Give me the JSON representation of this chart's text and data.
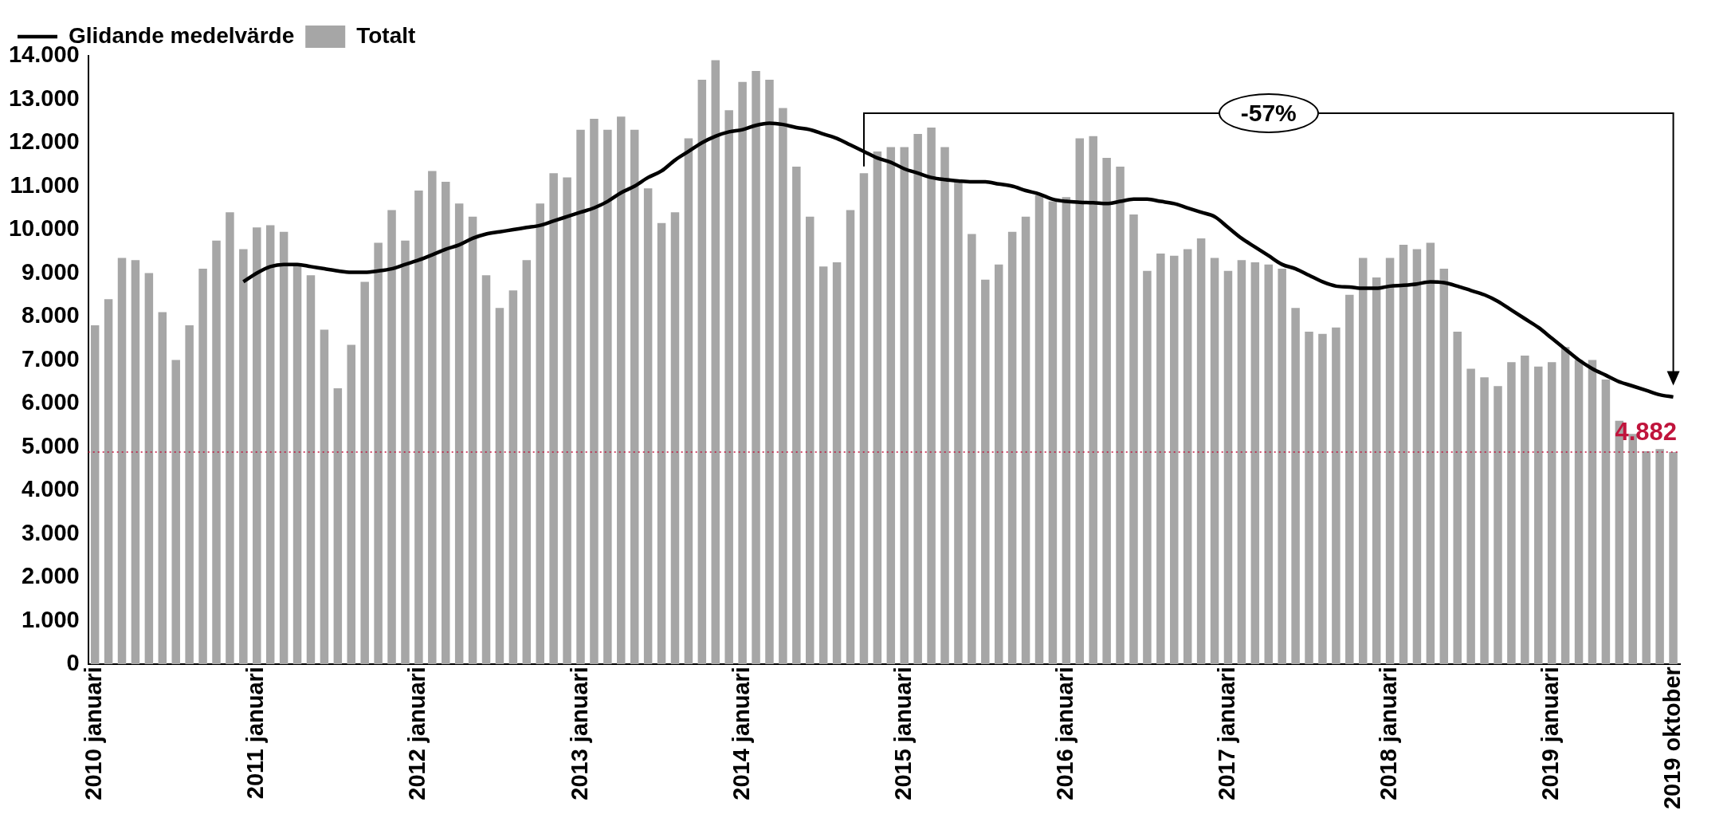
{
  "chart_data": {
    "type": "bar",
    "categories": [
      "2010 januari",
      null,
      null,
      null,
      null,
      null,
      null,
      null,
      null,
      null,
      null,
      null,
      "2011 januari",
      null,
      null,
      null,
      null,
      null,
      null,
      null,
      null,
      null,
      null,
      null,
      "2012 januari",
      null,
      null,
      null,
      null,
      null,
      null,
      null,
      null,
      null,
      null,
      null,
      "2013 januari",
      null,
      null,
      null,
      null,
      null,
      null,
      null,
      null,
      null,
      null,
      null,
      "2014 januari",
      null,
      null,
      null,
      null,
      null,
      null,
      null,
      null,
      null,
      null,
      null,
      "2015 januari",
      null,
      null,
      null,
      null,
      null,
      null,
      null,
      null,
      null,
      null,
      null,
      "2016 januari",
      null,
      null,
      null,
      null,
      null,
      null,
      null,
      null,
      null,
      null,
      null,
      "2017 januari",
      null,
      null,
      null,
      null,
      null,
      null,
      null,
      null,
      null,
      null,
      null,
      "2018 januari",
      null,
      null,
      null,
      null,
      null,
      null,
      null,
      null,
      null,
      null,
      null,
      "2019 januari",
      null,
      null,
      null,
      null,
      null,
      null,
      null,
      null,
      "2019 oktober"
    ],
    "series": [
      {
        "name": "Glidande medelvärde",
        "type": "line",
        "color": "#000000",
        "values": [
          null,
          null,
          null,
          null,
          null,
          null,
          null,
          null,
          null,
          null,
          null,
          8800,
          9000,
          9150,
          9200,
          9200,
          9150,
          9100,
          9050,
          9020,
          9020,
          9050,
          9100,
          9200,
          9300,
          9420,
          9550,
          9650,
          9800,
          9900,
          9950,
          10000,
          10050,
          10100,
          10200,
          10300,
          10400,
          10500,
          10650,
          10850,
          11000,
          11200,
          11350,
          11600,
          11800,
          12000,
          12150,
          12250,
          12300,
          12400,
          12450,
          12420,
          12350,
          12300,
          12200,
          12100,
          11950,
          11800,
          11650,
          11550,
          11400,
          11300,
          11200,
          11150,
          11120,
          11100,
          11100,
          11050,
          11000,
          10900,
          10820,
          10700,
          10650,
          10630,
          10620,
          10600,
          10650,
          10700,
          10700,
          10650,
          10600,
          10500,
          10400,
          10300,
          10050,
          9800,
          9600,
          9400,
          9200,
          9100,
          8950,
          8800,
          8700,
          8680,
          8650,
          8650,
          8700,
          8720,
          8750,
          8800,
          8780,
          8700,
          8600,
          8500,
          8350,
          8150,
          7950,
          7750,
          7500,
          7250,
          7000,
          6800,
          6650,
          6500,
          6400,
          6300,
          6200,
          6150
        ]
      },
      {
        "name": "Totalt",
        "color": "#a6a6a6",
        "values": [
          7800,
          8400,
          9350,
          9300,
          9000,
          8100,
          7000,
          7800,
          9100,
          9750,
          10400,
          9550,
          10050,
          10100,
          9950,
          9200,
          8950,
          7700,
          6350,
          7350,
          8800,
          9700,
          10450,
          9750,
          10900,
          11350,
          11100,
          10600,
          10300,
          8950,
          8200,
          8600,
          9300,
          10600,
          11300,
          11200,
          12300,
          12550,
          12300,
          12600,
          12300,
          10950,
          10150,
          10400,
          12100,
          13450,
          13900,
          12750,
          13400,
          13650,
          13450,
          12800,
          11450,
          10300,
          9150,
          9250,
          10450,
          11300,
          11800,
          11900,
          11900,
          12200,
          12350,
          11900,
          11100,
          9900,
          8850,
          9200,
          9950,
          10300,
          10800,
          10650,
          10750,
          12100,
          12150,
          11650,
          11450,
          10350,
          9050,
          9450,
          9400,
          9550,
          9800,
          9350,
          9050,
          9300,
          9250,
          9200,
          9100,
          8200,
          7650,
          7600,
          7750,
          8500,
          9350,
          8900,
          9350,
          9650,
          9550,
          9700,
          9100,
          7650,
          6800,
          6600,
          6400,
          6950,
          7100,
          6850,
          6950,
          7300,
          7000,
          7000,
          6550,
          5600,
          5300,
          4900,
          4950,
          4882
        ]
      }
    ],
    "ylim": [
      0,
      14000
    ],
    "yticks": [
      {
        "value": 0,
        "label": "0"
      },
      {
        "value": 1000,
        "label": "1.000"
      },
      {
        "value": 2000,
        "label": "2.000"
      },
      {
        "value": 3000,
        "label": "3.000"
      },
      {
        "value": 4000,
        "label": "4.000"
      },
      {
        "value": 5000,
        "label": "5.000"
      },
      {
        "value": 6000,
        "label": "6.000"
      },
      {
        "value": 7000,
        "label": "7.000"
      },
      {
        "value": 8000,
        "label": "8.000"
      },
      {
        "value": 9000,
        "label": "9.000"
      },
      {
        "value": 10000,
        "label": "10.000"
      },
      {
        "value": 11000,
        "label": "11.000"
      },
      {
        "value": 12000,
        "label": "12.000"
      },
      {
        "value": 13000,
        "label": "13.000"
      },
      {
        "value": 14000,
        "label": "14.000"
      }
    ],
    "ref_lines": [
      {
        "axis": "y",
        "value": 4882,
        "label": "4.882",
        "color": "#c0143c",
        "line_style": "dotted"
      }
    ],
    "annotations": [
      "-57%"
    ],
    "legend": "top left",
    "grid": false,
    "marker": "none"
  }
}
